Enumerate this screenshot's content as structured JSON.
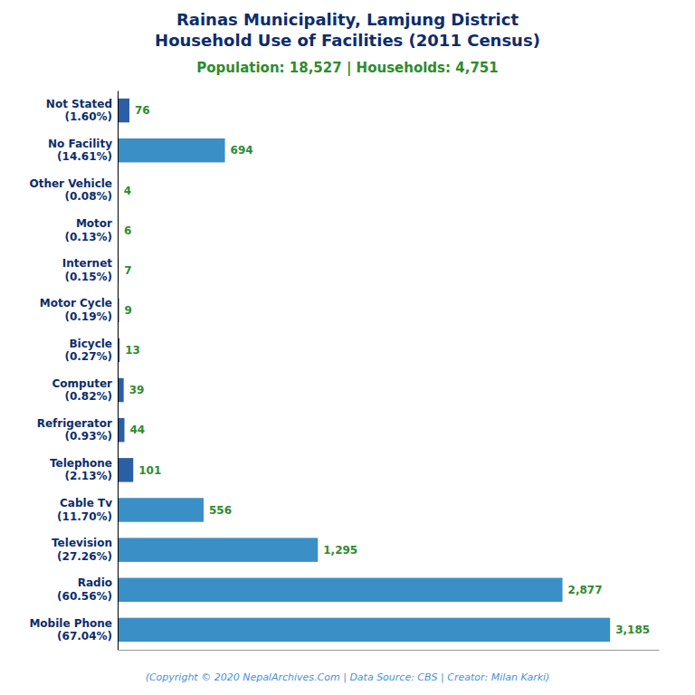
{
  "chart_data": {
    "type": "bar",
    "orientation": "horizontal",
    "title": "Rainas Municipality, Lamjung District\nHousehold Use of Facilities (2011 Census)",
    "subtitle": "Population: 18,527 | Households: 4,751",
    "annotations": [
      "(Copyright © 2020 NepalArchives.Com | Data Source: CBS | Creator: Milan Karki)"
    ],
    "categories": [
      "Not Stated\n(1.60%)",
      "No Facility\n(14.61%)",
      "Other Vehicle\n(0.08%)",
      "Motor\n(0.13%)",
      "Internet\n(0.15%)",
      "Motor Cycle\n(0.19%)",
      "Bicycle\n(0.27%)",
      "Computer\n(0.82%)",
      "Refrigerator\n(0.93%)",
      "Telephone\n(2.13%)",
      "Cable Tv\n(11.70%)",
      "Television\n(27.26%)",
      "Radio\n(60.56%)",
      "Mobile Phone\n(67.04%)"
    ],
    "values": [
      76,
      694,
      4,
      6,
      7,
      9,
      13,
      39,
      44,
      101,
      556,
      1295,
      2877,
      3185
    ],
    "value_labels": [
      "76",
      "694",
      "4",
      "6",
      "7",
      "9",
      "13",
      "39",
      "44",
      "101",
      "556",
      "1,295",
      "2,877",
      "3,185"
    ],
    "data_labels": true,
    "colors": [
      "#2a5fa5",
      "#3a8fc7",
      "#2a5fa5",
      "#2a5fa5",
      "#2a5fa5",
      "#2a5fa5",
      "#2a5fa5",
      "#2a5fa5",
      "#2a5fa5",
      "#2a5fa5",
      "#3a8fc7",
      "#3a8fc7",
      "#3a8fc7",
      "#3a8fc7"
    ],
    "xlim": [
      0,
      3500
    ],
    "tick_labels": "y",
    "grid": false
  }
}
